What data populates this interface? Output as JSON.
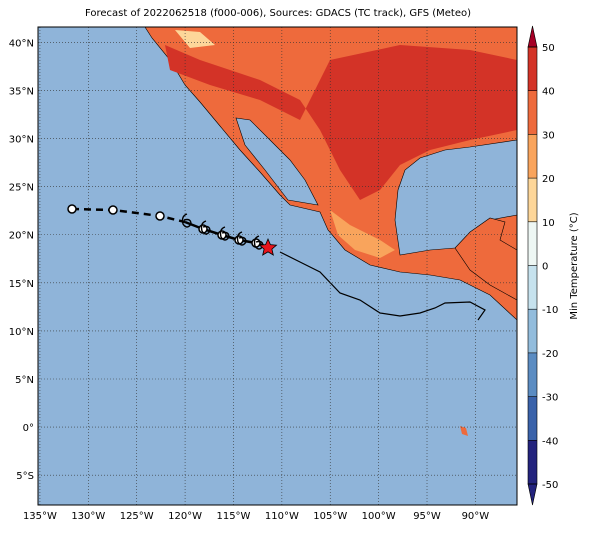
{
  "chart_data": {
    "type": "map",
    "title": "Forecast of 2022062518 (f000-006), Sources: GDACS (TC track), GFS (Meteo)",
    "xlim": [
      -135.2,
      -85.7
    ],
    "ylim": [
      -8.1,
      41.6
    ],
    "xticks": [
      {
        "value": -135,
        "label": "135°W"
      },
      {
        "value": -130,
        "label": "130°W"
      },
      {
        "value": -125,
        "label": "125°W"
      },
      {
        "value": -120,
        "label": "120°W"
      },
      {
        "value": -115,
        "label": "115°W"
      },
      {
        "value": -110,
        "label": "110°W"
      },
      {
        "value": -105,
        "label": "105°W"
      },
      {
        "value": -100,
        "label": "100°W"
      },
      {
        "value": -95,
        "label": "95°W"
      },
      {
        "value": -90,
        "label": "90°W"
      }
    ],
    "yticks": [
      {
        "value": 40,
        "label": "40°N"
      },
      {
        "value": 35,
        "label": "35°N"
      },
      {
        "value": 30,
        "label": "30°N"
      },
      {
        "value": 25,
        "label": "25°N"
      },
      {
        "value": 20,
        "label": "20°N"
      },
      {
        "value": 15,
        "label": "15°N"
      },
      {
        "value": 10,
        "label": "10°N"
      },
      {
        "value": 5,
        "label": "5°N"
      },
      {
        "value": 0,
        "label": "0°"
      },
      {
        "value": -5,
        "label": "5°S"
      }
    ],
    "grid": true
  },
  "colorbar": {
    "label": "Min Temperature (°C)",
    "lim": [
      -50,
      50
    ],
    "ticks": [
      -50,
      -40,
      -30,
      -20,
      -10,
      0,
      10,
      20,
      30,
      40,
      50
    ],
    "colors": [
      "#23237d",
      "#3a62aa",
      "#5b8cc2",
      "#92bcdc",
      "#c6e2ee",
      "#eef7f4",
      "#fdd699",
      "#f9a45c",
      "#ee6a3c",
      "#d33327",
      "#a50026"
    ]
  }
}
